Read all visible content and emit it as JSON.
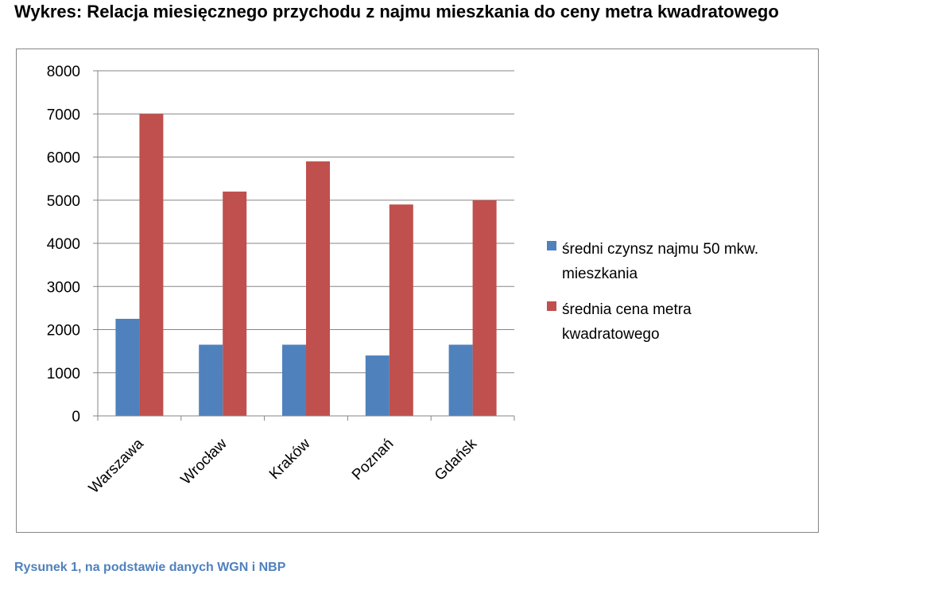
{
  "title": "Wykres: Relacja miesięcznego przychodu z najmu mieszkania do ceny metra kwadratowego",
  "caption": "Rysunek 1, na podstawie danych WGN i NBP",
  "chart_data": {
    "type": "bar",
    "categories": [
      "Warszawa",
      "Wrocław",
      "Kraków",
      "Poznań",
      "Gdańsk"
    ],
    "series": [
      {
        "name": "średni czynsz najmu 50 mkw. mieszkania",
        "legend_lines": [
          "średni czynsz najmu 50 mkw.",
          "mieszkania"
        ],
        "color": "#4f81bd",
        "values": [
          2250,
          1650,
          1650,
          1400,
          1650
        ]
      },
      {
        "name": "średnia cena metra kwadratowego",
        "legend_lines": [
          "średnia cena metra",
          "kwadratowego"
        ],
        "color": "#c0504d",
        "values": [
          7000,
          5200,
          5900,
          4900,
          5000
        ]
      }
    ],
    "ylim": [
      0,
      8000
    ],
    "yticks": [
      0,
      1000,
      2000,
      3000,
      4000,
      5000,
      6000,
      7000,
      8000
    ],
    "grid": true,
    "legend_position": "right",
    "xlabel": "",
    "ylabel": ""
  }
}
